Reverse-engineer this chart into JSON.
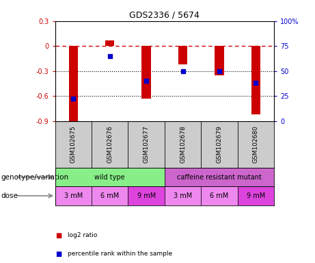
{
  "title": "GDS2336 / 5674",
  "samples": [
    "GSM102675",
    "GSM102676",
    "GSM102677",
    "GSM102678",
    "GSM102679",
    "GSM102680"
  ],
  "log2_ratios": [
    -0.92,
    0.07,
    -0.63,
    -0.22,
    -0.35,
    -0.82
  ],
  "percentile_ranks": [
    22,
    65,
    40,
    50,
    50,
    38
  ],
  "ylim_left": [
    -0.9,
    0.3
  ],
  "ylim_right": [
    0,
    100
  ],
  "bar_color": "#cc0000",
  "point_color": "#0000cc",
  "dashed_line_color": "#cc0000",
  "dotted_line_color": "#000000",
  "right_ticks": [
    0,
    25,
    50,
    75,
    100
  ],
  "right_tick_labels": [
    "0",
    "25",
    "50",
    "75",
    "100%"
  ],
  "left_ticks": [
    -0.9,
    -0.6,
    -0.3,
    0,
    0.3
  ],
  "left_tick_labels": [
    "-0.9",
    "-0.6",
    "-0.3",
    "0",
    "0.3"
  ],
  "genotype_row": [
    {
      "label": "wild type",
      "span": [
        0,
        3
      ],
      "color": "#88ee88"
    },
    {
      "label": "caffeine resistant mutant",
      "span": [
        3,
        6
      ],
      "color": "#cc66cc"
    }
  ],
  "dose_row": [
    {
      "label": "3 mM",
      "color": "#ee88ee"
    },
    {
      "label": "6 mM",
      "color": "#ee88ee"
    },
    {
      "label": "9 mM",
      "color": "#dd44dd"
    },
    {
      "label": "3 mM",
      "color": "#ee88ee"
    },
    {
      "label": "6 mM",
      "color": "#ee88ee"
    },
    {
      "label": "9 mM",
      "color": "#dd44dd"
    }
  ],
  "legend_items": [
    {
      "label": "log2 ratio",
      "color": "#cc0000"
    },
    {
      "label": "percentile rank within the sample",
      "color": "#0000cc"
    }
  ],
  "genotype_label": "genotype/variation",
  "dose_label": "dose",
  "sample_box_color": "#cccccc",
  "background_color": "#ffffff",
  "bar_width": 0.25
}
